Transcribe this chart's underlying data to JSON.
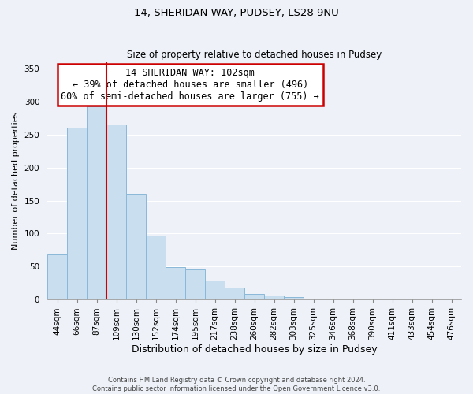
{
  "title1": "14, SHERIDAN WAY, PUDSEY, LS28 9NU",
  "title2": "Size of property relative to detached houses in Pudsey",
  "xlabel": "Distribution of detached houses by size in Pudsey",
  "ylabel": "Number of detached properties",
  "bar_labels": [
    "44sqm",
    "66sqm",
    "87sqm",
    "109sqm",
    "130sqm",
    "152sqm",
    "174sqm",
    "195sqm",
    "217sqm",
    "238sqm",
    "260sqm",
    "282sqm",
    "303sqm",
    "325sqm",
    "346sqm",
    "368sqm",
    "390sqm",
    "411sqm",
    "433sqm",
    "454sqm",
    "476sqm"
  ],
  "bar_values": [
    70,
    260,
    293,
    265,
    160,
    97,
    49,
    46,
    29,
    18,
    9,
    6,
    4,
    2,
    2,
    2,
    2,
    2,
    2,
    2,
    2
  ],
  "bar_color": "#c9dff0",
  "bar_edge_color": "#8ab8d8",
  "vline_color": "#cc0000",
  "annotation_title": "14 SHERIDAN WAY: 102sqm",
  "annotation_line1": "← 39% of detached houses are smaller (496)",
  "annotation_line2": "60% of semi-detached houses are larger (755) →",
  "annotation_box_color": "#ffffff",
  "annotation_border_color": "#cc0000",
  "ylim": [
    0,
    360
  ],
  "yticks": [
    0,
    50,
    100,
    150,
    200,
    250,
    300,
    350
  ],
  "footer1": "Contains HM Land Registry data © Crown copyright and database right 2024.",
  "footer2": "Contains public sector information licensed under the Open Government Licence v3.0.",
  "bg_color": "#eef2f8",
  "grid_color": "#ffffff",
  "title1_fontsize": 9.5,
  "title2_fontsize": 8.5,
  "tick_fontsize": 7.5,
  "ylabel_fontsize": 8.0,
  "xlabel_fontsize": 9.0,
  "footer_fontsize": 6.0
}
